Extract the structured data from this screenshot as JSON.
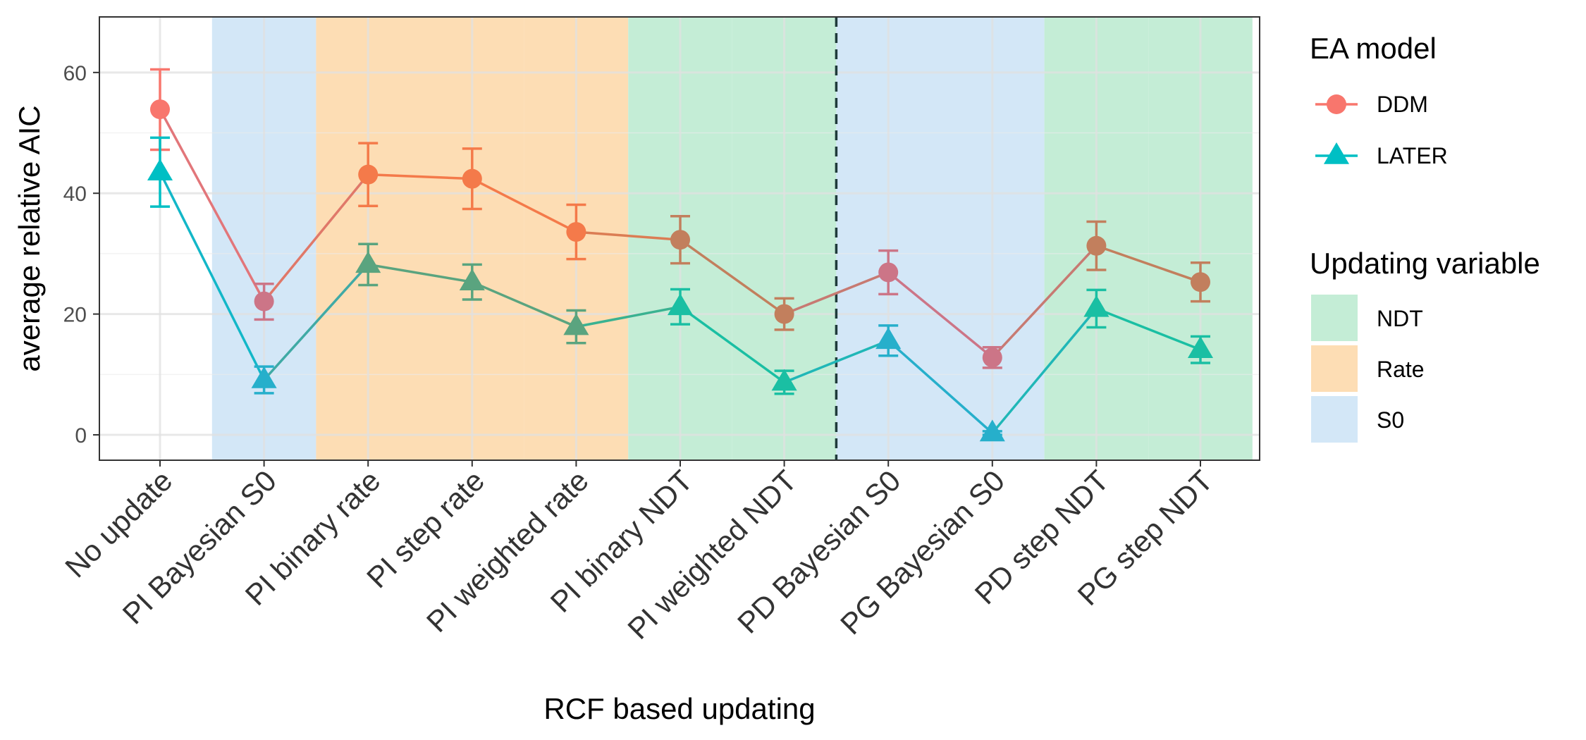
{
  "chart_data": {
    "type": "line",
    "xlabel": "RCF based updating",
    "ylabel": "average relative AIC",
    "categories": [
      "No update",
      "PI Bayesian S0",
      "PI binary rate",
      "PI step rate",
      "PI weighted rate",
      "PI binary NDT",
      "PI weighted NDT",
      "PD Bayesian S0",
      "PG Bayesian S0",
      "PD step NDT",
      "PG step NDT"
    ],
    "y_ticks": [
      "0",
      "20",
      "40",
      "60"
    ],
    "ylim": [
      -4.2,
      69.2
    ],
    "grid": true,
    "legend_placement": "right",
    "category_updating_variable": [
      "none",
      "S0",
      "Rate",
      "Rate",
      "Rate",
      "NDT",
      "NDT",
      "S0",
      "S0",
      "NDT",
      "NDT"
    ],
    "dashed_divider_after_category": "PI weighted NDT",
    "series": [
      {
        "name": "DDM",
        "marker": "circle",
        "values": [
          53.9,
          22.1,
          43.1,
          42.4,
          33.6,
          32.3,
          20.0,
          26.9,
          12.8,
          31.3,
          25.3
        ],
        "error_low": [
          47.2,
          19.1,
          37.9,
          37.4,
          29.1,
          28.4,
          17.4,
          23.3,
          11.1,
          27.3,
          22.1
        ],
        "error_high": [
          60.5,
          25.0,
          48.3,
          47.4,
          38.1,
          36.2,
          22.6,
          30.5,
          14.5,
          35.3,
          28.5
        ],
        "point_colors": [
          "#F8766D",
          "#CC7587",
          "#F47A4A",
          "#F47A4A",
          "#F47A4A",
          "#C27F5D",
          "#C27F5D",
          "#CC7587",
          "#CC7587",
          "#C27F5D",
          "#C27F5D"
        ]
      },
      {
        "name": "LATER",
        "marker": "triangle",
        "values": [
          43.5,
          9.1,
          28.2,
          25.3,
          17.9,
          21.2,
          8.7,
          15.6,
          0.3,
          20.9,
          14.1
        ],
        "error_low": [
          37.8,
          6.9,
          24.8,
          22.4,
          15.2,
          18.3,
          6.8,
          13.1,
          0.0,
          17.8,
          11.9
        ],
        "error_high": [
          49.2,
          11.3,
          31.6,
          28.2,
          20.6,
          24.1,
          10.6,
          18.1,
          0.6,
          24.0,
          16.3
        ],
        "point_colors": [
          "#00BFC4",
          "#26AFCB",
          "#5AA47F",
          "#5AA47F",
          "#5AA47F",
          "#1ABFA3",
          "#1ABFA3",
          "#26AFCB",
          "#26AFCB",
          "#1ABFA3",
          "#1ABFA3"
        ]
      }
    ],
    "legend_model": {
      "title": "EA model",
      "items": [
        {
          "label": "DDM",
          "color": "#F8766D",
          "marker": "circle"
        },
        {
          "label": "LATER",
          "color": "#00BFC4",
          "marker": "triangle"
        }
      ]
    },
    "legend_updating": {
      "title": "Updating variable",
      "items": [
        {
          "label": "NDT",
          "color": "#C4EDD6"
        },
        {
          "label": "Rate",
          "color": "#FDDDB4"
        },
        {
          "label": "S0",
          "color": "#D3E7F7"
        }
      ]
    }
  }
}
